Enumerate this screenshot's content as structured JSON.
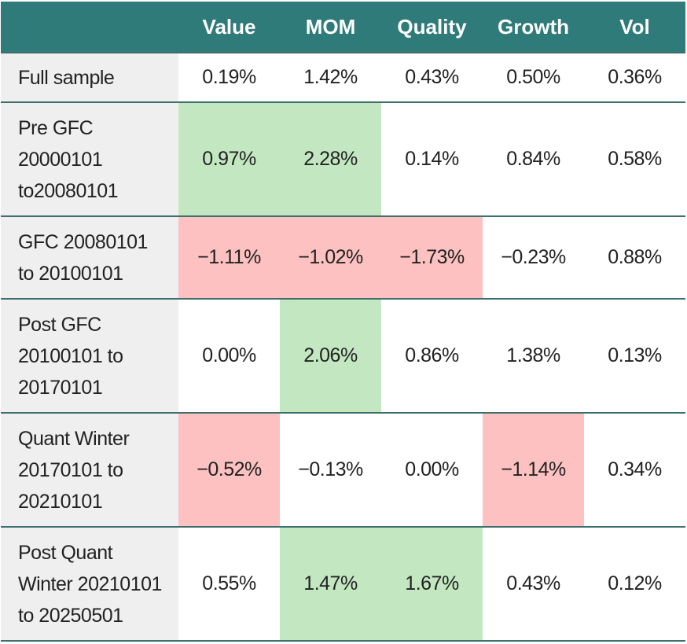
{
  "table": {
    "columns": [
      "",
      "Value",
      "MOM",
      "Quality",
      "Growth",
      "Vol"
    ],
    "rows": [
      {
        "label": [
          "Full sample"
        ],
        "cells": [
          "0.19%",
          "1.42%",
          "0.43%",
          "0.50%",
          "0.36%"
        ],
        "highlight": [
          null,
          null,
          null,
          null,
          null
        ]
      },
      {
        "label": [
          "Pre GFC",
          "20000101",
          "to20080101"
        ],
        "cells": [
          "0.97%",
          "2.28%",
          "0.14%",
          "0.84%",
          "0.58%"
        ],
        "highlight": [
          "#c3e8c1",
          "#c3e8c1",
          null,
          null,
          null
        ]
      },
      {
        "label": [
          "GFC 20080101",
          "to 20100101"
        ],
        "cells": [
          "−1.11%",
          "−1.02%",
          "−1.73%",
          "−0.23%",
          "0.88%"
        ],
        "highlight": [
          "#fcc1c0",
          "#fcc1c0",
          "#fcc1c0",
          null,
          null
        ]
      },
      {
        "label": [
          "Post GFC",
          "20100101 to",
          "20170101"
        ],
        "cells": [
          "0.00%",
          "2.06%",
          "0.86%",
          "1.38%",
          "0.13%"
        ],
        "highlight": [
          null,
          "#c3e8c1",
          null,
          null,
          null
        ]
      },
      {
        "label": [
          "Quant Winter",
          "20170101 to",
          "20210101"
        ],
        "cells": [
          "−0.52%",
          "−0.13%",
          "0.00%",
          "−1.14%",
          "0.34%"
        ],
        "highlight": [
          "#fcc1c0",
          null,
          null,
          "#fcc1c0",
          null
        ]
      },
      {
        "label": [
          "Post Quant",
          "Winter 20210101",
          "to 20250501"
        ],
        "cells": [
          "0.55%",
          "1.47%",
          "1.67%",
          "0.43%",
          "0.12%"
        ],
        "highlight": [
          null,
          "#c3e8c1",
          "#c3e8c1",
          null,
          null
        ]
      }
    ]
  }
}
